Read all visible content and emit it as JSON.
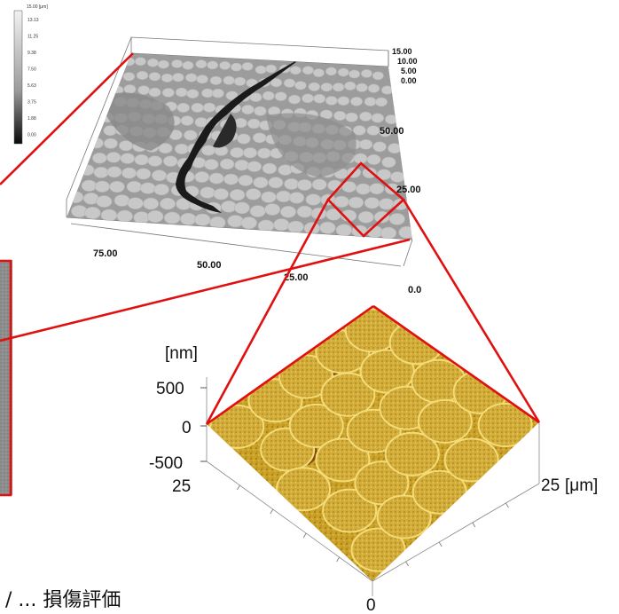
{
  "top_map": {
    "colorbar": {
      "unit_label": "15.00 [μm]",
      "ticks": [
        "13.13",
        "11.25",
        "9.38",
        "7.50",
        "5.63",
        "3.75",
        "1.88",
        "0.00"
      ]
    },
    "z_ticks": [
      "15.00",
      "10.00",
      "5.00",
      "0.00"
    ],
    "y_ticks": [
      "50.00",
      "25.00"
    ],
    "x_ticks": [
      "75.00",
      "50.00",
      "25.00",
      "0.0"
    ]
  },
  "afm": {
    "z_unit": "[nm]",
    "z_ticks": [
      "500",
      "0",
      "-500"
    ],
    "left_axis_label": "25",
    "right_axis_label": "25",
    "right_axis_unit": "[μm]",
    "bottom_axis_label": "0"
  },
  "caption": "/ ... 損傷評価",
  "colors": {
    "highlight": "#e01010",
    "afm_base": "#b8860b",
    "afm_light": "#e8c84a",
    "afm_dark": "#7a3a08",
    "surface_gray": "#a8a8a8"
  }
}
